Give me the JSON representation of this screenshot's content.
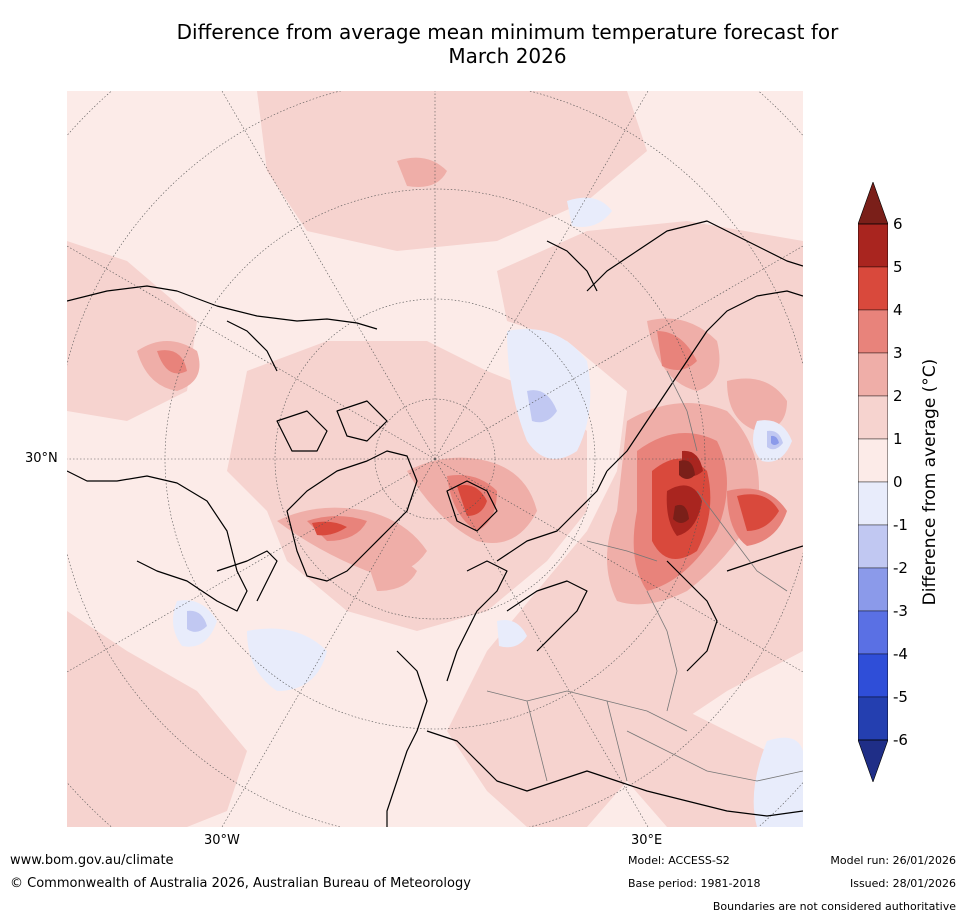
{
  "title_line1": "Difference from average mean minimum temperature forecast for",
  "title_line2": "March 2026",
  "map": {
    "lat_label": "30°N",
    "lon_labels": [
      "30°W",
      "30°E"
    ]
  },
  "colorbar": {
    "label": "Difference from average (°C)",
    "ticks": [
      "6",
      "5",
      "4",
      "3",
      "2",
      "1",
      "0",
      "-1",
      "-2",
      "-3",
      "-4",
      "-5",
      "-6"
    ],
    "colors_warm": [
      "#7a1f19",
      "#a9251f",
      "#d9493c",
      "#e8837b",
      "#efaea8",
      "#f6d3cf",
      "#fcebe8"
    ],
    "colors_cool": [
      "#e8ecfb",
      "#c1c8f2",
      "#8b9aea",
      "#5a70e4",
      "#2f4ed8",
      "#243fb0",
      "#1f2e87"
    ]
  },
  "footer": {
    "website": "www.bom.gov.au/climate",
    "copyright": "© Commonwealth of Australia 2026, Australian Bureau of Meteorology",
    "model": "Model: ACCESS-S2",
    "base_period": "Base period: 1981-2018",
    "model_run": "Model run: 26/01/2026",
    "issued": "Issued: 28/01/2026",
    "disclaimer": "Boundaries are not considered authoritative"
  }
}
